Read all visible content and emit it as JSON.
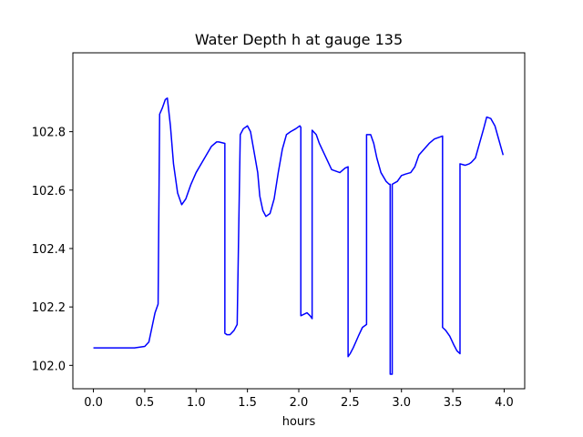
{
  "chart_data": {
    "type": "line",
    "title": "Water Depth h at gauge 135",
    "xlabel": "hours",
    "ylabel": "",
    "xlim": [
      -0.2,
      4.2
    ],
    "ylim": [
      101.92,
      103.07
    ],
    "grid": false,
    "xticks": [
      0.0,
      0.5,
      1.0,
      1.5,
      2.0,
      2.5,
      3.0,
      3.5,
      4.0
    ],
    "xtick_labels": [
      "0.0",
      "0.5",
      "1.0",
      "1.5",
      "2.0",
      "2.5",
      "3.0",
      "3.5",
      "4.0"
    ],
    "yticks": [
      102.0,
      102.2,
      102.4,
      102.6,
      102.8
    ],
    "ytick_labels": [
      "102.0",
      "102.2",
      "102.4",
      "102.6",
      "102.8"
    ],
    "series": [
      {
        "color": "#0000ff",
        "x": [
          0.0,
          0.2,
          0.4,
          0.5,
          0.54,
          0.57,
          0.6,
          0.63,
          0.645,
          0.645,
          0.67,
          0.7,
          0.72,
          0.75,
          0.78,
          0.82,
          0.86,
          0.9,
          0.95,
          1.0,
          1.05,
          1.1,
          1.15,
          1.2,
          1.22,
          1.28,
          1.28,
          1.3,
          1.33,
          1.37,
          1.4,
          1.43,
          1.43,
          1.46,
          1.5,
          1.53,
          1.57,
          1.6,
          1.62,
          1.65,
          1.68,
          1.72,
          1.76,
          1.8,
          1.84,
          1.88,
          1.92,
          1.97,
          2.01,
          2.02,
          2.02,
          2.05,
          2.08,
          2.11,
          2.13,
          2.13,
          2.17,
          2.2,
          2.24,
          2.28,
          2.32,
          2.36,
          2.4,
          2.45,
          2.48,
          2.48,
          2.5,
          2.53,
          2.58,
          2.62,
          2.66,
          2.66,
          2.7,
          2.73,
          2.76,
          2.8,
          2.85,
          2.88,
          2.89,
          2.89,
          2.91,
          2.91,
          2.96,
          3.0,
          3.04,
          3.09,
          3.13,
          3.17,
          3.22,
          3.27,
          3.32,
          3.36,
          3.4,
          3.4,
          3.43,
          3.47,
          3.51,
          3.54,
          3.57,
          3.57,
          3.62,
          3.66,
          3.68,
          3.72,
          3.76,
          3.8,
          3.83,
          3.87,
          3.91,
          3.95,
          3.99
        ],
        "y": [
          102.06,
          102.06,
          102.06,
          102.065,
          102.08,
          102.13,
          102.18,
          102.21,
          102.86,
          102.86,
          102.88,
          102.91,
          102.915,
          102.82,
          102.69,
          102.59,
          102.55,
          102.57,
          102.62,
          102.66,
          102.69,
          102.72,
          102.75,
          102.765,
          102.765,
          102.76,
          102.11,
          102.105,
          102.105,
          102.12,
          102.14,
          102.79,
          102.79,
          102.81,
          102.82,
          102.8,
          102.72,
          102.66,
          102.58,
          102.53,
          102.51,
          102.52,
          102.57,
          102.66,
          102.74,
          102.79,
          102.8,
          102.81,
          102.82,
          102.815,
          102.17,
          102.175,
          102.18,
          102.17,
          102.16,
          102.805,
          102.79,
          102.76,
          102.73,
          102.7,
          102.67,
          102.665,
          102.66,
          102.675,
          102.68,
          102.03,
          102.04,
          102.06,
          102.1,
          102.13,
          102.14,
          102.79,
          102.79,
          102.76,
          102.71,
          102.66,
          102.63,
          102.62,
          102.62,
          101.97,
          101.97,
          102.62,
          102.63,
          102.65,
          102.655,
          102.66,
          102.68,
          102.72,
          102.74,
          102.76,
          102.775,
          102.78,
          102.785,
          102.13,
          102.12,
          102.1,
          102.07,
          102.05,
          102.04,
          102.69,
          102.685,
          102.69,
          102.695,
          102.71,
          102.76,
          102.81,
          102.85,
          102.845,
          102.82,
          102.77,
          102.72
        ]
      }
    ]
  }
}
